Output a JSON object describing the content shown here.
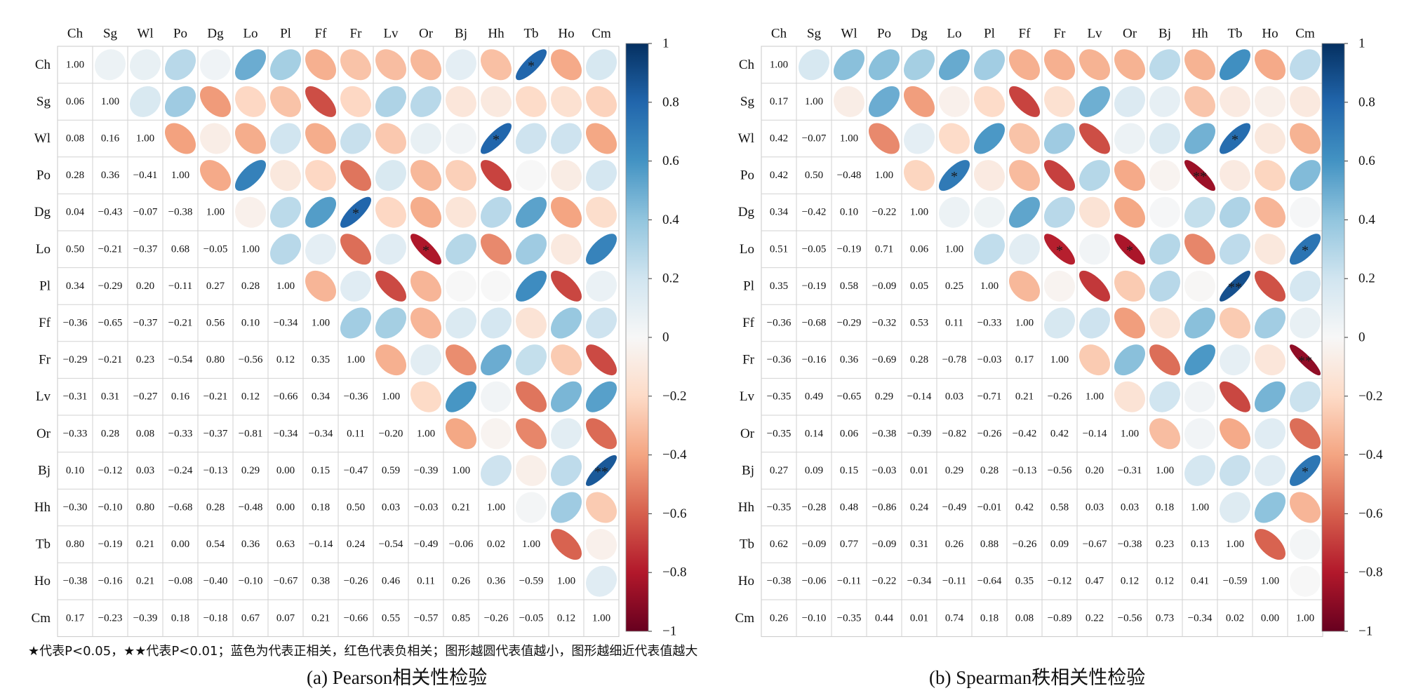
{
  "colorbar": {
    "ticks": [
      "1",
      "0.8",
      "0.6",
      "0.4",
      "0.2",
      "0",
      "−0.2",
      "−0.4",
      "−0.6",
      "−0.8",
      "−1"
    ],
    "tick_values": [
      1,
      0.8,
      0.6,
      0.4,
      0.2,
      0,
      -0.2,
      -0.4,
      -0.6,
      -0.8,
      -1
    ],
    "colors": [
      "#67001f",
      "#b2182b",
      "#d6604d",
      "#f4a582",
      "#fddbc7",
      "#f7f7f7",
      "#d1e5f0",
      "#92c5de",
      "#4393c3",
      "#2166ac",
      "#053061"
    ]
  },
  "legend_note": "★代表P<0.05，★★代表P<0.01；蓝色为代表正相关，红色代表负相关；图形越圆代表值越小，图形越细近代表值越大",
  "chart_data": [
    {
      "type": "heatmap",
      "caption": "(a) Pearson相关性检验",
      "variables": [
        "Ch",
        "Sg",
        "Wl",
        "Po",
        "Dg",
        "Lo",
        "Pl",
        "Ff",
        "Fr",
        "Lv",
        "Or",
        "Bj",
        "Hh",
        "Tb",
        "Ho",
        "Cm"
      ],
      "lower": [
        [],
        [
          0.06
        ],
        [
          0.08,
          0.16
        ],
        [
          0.28,
          0.36,
          -0.41
        ],
        [
          0.04,
          -0.43,
          -0.07,
          -0.38
        ],
        [
          0.5,
          -0.21,
          -0.37,
          0.68,
          -0.05
        ],
        [
          0.34,
          -0.29,
          0.2,
          -0.11,
          0.27,
          0.28
        ],
        [
          -0.36,
          -0.65,
          -0.37,
          -0.21,
          0.56,
          0.1,
          -0.34
        ],
        [
          -0.29,
          -0.21,
          0.23,
          -0.54,
          0.8,
          -0.56,
          0.12,
          0.35
        ],
        [
          -0.31,
          0.31,
          -0.27,
          0.16,
          -0.21,
          0.12,
          -0.66,
          0.34,
          -0.36
        ],
        [
          -0.33,
          0.28,
          0.08,
          -0.33,
          -0.37,
          -0.81,
          -0.34,
          -0.34,
          0.11,
          -0.2
        ],
        [
          0.1,
          -0.12,
          0.03,
          -0.24,
          -0.13,
          0.29,
          0.0,
          0.15,
          -0.47,
          0.59,
          -0.39
        ],
        [
          -0.3,
          -0.1,
          0.8,
          -0.68,
          0.28,
          -0.48,
          0.0,
          0.18,
          0.5,
          0.03,
          -0.03,
          0.21
        ],
        [
          0.8,
          -0.19,
          0.21,
          0.0,
          0.54,
          0.36,
          0.63,
          -0.14,
          0.24,
          -0.54,
          -0.49,
          -0.06,
          0.02
        ],
        [
          -0.38,
          -0.16,
          0.21,
          -0.08,
          -0.4,
          -0.1,
          -0.67,
          0.38,
          -0.26,
          0.46,
          0.11,
          0.26,
          0.36,
          -0.59
        ],
        [
          0.17,
          -0.23,
          -0.39,
          0.18,
          -0.18,
          0.67,
          0.07,
          0.21,
          -0.66,
          0.55,
          -0.57,
          0.85,
          -0.26,
          -0.05,
          0.12
        ]
      ],
      "significance": [
        {
          "row": 0,
          "col": 13,
          "mark": "*"
        },
        {
          "row": 2,
          "col": 12,
          "mark": "*"
        },
        {
          "row": 4,
          "col": 8,
          "mark": "*"
        },
        {
          "row": 5,
          "col": 10,
          "mark": "*"
        },
        {
          "row": 11,
          "col": 15,
          "mark": "**"
        }
      ],
      "diagonal": "1.00",
      "color_scale": "RdBu",
      "range": [
        -1,
        1
      ]
    },
    {
      "type": "heatmap",
      "caption": "(b) Spearman秩相关性检验",
      "variables": [
        "Ch",
        "Sg",
        "Wl",
        "Po",
        "Dg",
        "Lo",
        "Pl",
        "Ff",
        "Fr",
        "Lv",
        "Or",
        "Bj",
        "Hh",
        "Tb",
        "Ho",
        "Cm"
      ],
      "lower": [
        [],
        [
          0.17
        ],
        [
          0.42,
          -0.07
        ],
        [
          0.42,
          0.5,
          -0.48
        ],
        [
          0.34,
          -0.42,
          0.1,
          -0.22
        ],
        [
          0.51,
          -0.05,
          -0.19,
          0.71,
          0.06
        ],
        [
          0.35,
          -0.19,
          0.58,
          -0.09,
          0.05,
          0.25
        ],
        [
          -0.36,
          -0.68,
          -0.29,
          -0.32,
          0.53,
          0.11,
          -0.33
        ],
        [
          -0.36,
          -0.16,
          0.36,
          -0.69,
          0.28,
          -0.78,
          -0.03,
          0.17
        ],
        [
          -0.35,
          0.49,
          -0.65,
          0.29,
          -0.14,
          0.03,
          -0.71,
          0.21,
          -0.26
        ],
        [
          -0.35,
          0.14,
          0.06,
          -0.38,
          -0.39,
          -0.82,
          -0.26,
          -0.42,
          0.42,
          -0.14
        ],
        [
          0.27,
          0.09,
          0.15,
          -0.03,
          0.01,
          0.29,
          0.28,
          -0.13,
          -0.56,
          0.2,
          -0.31
        ],
        [
          -0.35,
          -0.28,
          0.48,
          -0.86,
          0.24,
          -0.49,
          -0.01,
          0.42,
          0.58,
          0.03,
          0.03,
          0.18
        ],
        [
          0.62,
          -0.09,
          0.77,
          -0.09,
          0.31,
          0.26,
          0.88,
          -0.26,
          0.09,
          -0.67,
          -0.38,
          0.23,
          0.13
        ],
        [
          -0.38,
          -0.06,
          -0.11,
          -0.22,
          -0.34,
          -0.11,
          -0.64,
          0.35,
          -0.12,
          0.47,
          0.12,
          0.12,
          0.41,
          -0.59
        ],
        [
          0.26,
          -0.1,
          -0.35,
          0.44,
          0.01,
          0.74,
          0.18,
          0.08,
          -0.89,
          0.22,
          -0.56,
          0.73,
          -0.34,
          0.02,
          0.0
        ]
      ],
      "significance": [
        {
          "row": 2,
          "col": 13,
          "mark": "*"
        },
        {
          "row": 3,
          "col": 5,
          "mark": "*"
        },
        {
          "row": 3,
          "col": 12,
          "mark": "**"
        },
        {
          "row": 5,
          "col": 8,
          "mark": "*"
        },
        {
          "row": 5,
          "col": 10,
          "mark": "*"
        },
        {
          "row": 5,
          "col": 15,
          "mark": "*"
        },
        {
          "row": 6,
          "col": 13,
          "mark": "**"
        },
        {
          "row": 8,
          "col": 15,
          "mark": "**"
        },
        {
          "row": 11,
          "col": 15,
          "mark": "*"
        }
      ],
      "diagonal": "1.00",
      "color_scale": "RdBu",
      "range": [
        -1,
        1
      ]
    }
  ]
}
